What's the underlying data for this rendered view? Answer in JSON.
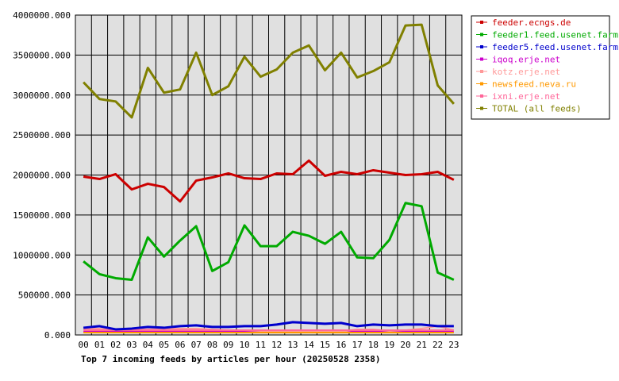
{
  "chart_data": {
    "type": "line",
    "title": "Top 7 incoming feeds by articles per hour (20250528 2358)",
    "xlabel": "",
    "ylabel": "",
    "ylim": [
      0,
      4000000
    ],
    "y_ticks": [
      "0.000",
      "500000.000",
      "1000000.000",
      "1500000.000",
      "2000000.000",
      "2500000.000",
      "3000000.000",
      "3500000.000",
      "4000000.000"
    ],
    "y_tick_values": [
      0,
      500000,
      1000000,
      1500000,
      2000000,
      2500000,
      3000000,
      3500000,
      4000000
    ],
    "categories": [
      "00",
      "01",
      "02",
      "03",
      "04",
      "05",
      "06",
      "07",
      "08",
      "09",
      "10",
      "11",
      "12",
      "13",
      "14",
      "15",
      "16",
      "17",
      "18",
      "19",
      "20",
      "21",
      "22",
      "23"
    ],
    "grid": true,
    "legend_position": "right",
    "plot_background": "#e0e0e0",
    "series": [
      {
        "name": "feeder.ecngs.de",
        "color": "#cc0000",
        "values": [
          1980000,
          1950000,
          2010000,
          1820000,
          1890000,
          1850000,
          1670000,
          1930000,
          1970000,
          2020000,
          1960000,
          1950000,
          2020000,
          2010000,
          2180000,
          1990000,
          2040000,
          2010000,
          2060000,
          2030000,
          2000000,
          2010000,
          2040000,
          1940000
        ]
      },
      {
        "name": "feeder1.feed.usenet.farm",
        "color": "#00aa00",
        "values": [
          920000,
          760000,
          710000,
          690000,
          1220000,
          980000,
          1180000,
          1360000,
          800000,
          910000,
          1370000,
          1110000,
          1110000,
          1290000,
          1240000,
          1140000,
          1290000,
          970000,
          960000,
          1190000,
          1650000,
          1610000,
          780000,
          690000
        ]
      },
      {
        "name": "feeder5.feed.usenet.farm",
        "color": "#0000cc",
        "values": [
          90000,
          110000,
          70000,
          80000,
          100000,
          90000,
          110000,
          120000,
          100000,
          100000,
          110000,
          110000,
          130000,
          160000,
          150000,
          140000,
          150000,
          110000,
          130000,
          120000,
          130000,
          130000,
          110000,
          110000
        ]
      },
      {
        "name": "iqoq.erje.net",
        "color": "#cc00cc",
        "values": [
          40000,
          40000,
          40000,
          40000,
          40000,
          40000,
          40000,
          40000,
          40000,
          40000,
          40000,
          40000,
          40000,
          40000,
          40000,
          40000,
          40000,
          40000,
          40000,
          40000,
          40000,
          40000,
          40000,
          40000
        ]
      },
      {
        "name": "kotz.erje.net",
        "color": "#ff9999",
        "values": [
          80000,
          80000,
          60000,
          70000,
          70000,
          80000,
          80000,
          80000,
          70000,
          60000,
          60000,
          50000,
          40000,
          40000,
          40000,
          40000,
          40000,
          70000,
          70000,
          50000,
          60000,
          80000,
          110000,
          60000
        ]
      },
      {
        "name": "newsfeed.neva.ru",
        "color": "#ff9900",
        "values": [
          30000,
          30000,
          30000,
          30000,
          30000,
          30000,
          30000,
          30000,
          30000,
          30000,
          30000,
          30000,
          30000,
          30000,
          30000,
          30000,
          30000,
          30000,
          30000,
          30000,
          30000,
          30000,
          30000,
          30000
        ]
      },
      {
        "name": "ixni.erje.net",
        "color": "#ff6699",
        "values": [
          60000,
          60000,
          60000,
          60000,
          60000,
          60000,
          60000,
          60000,
          60000,
          60000,
          60000,
          60000,
          60000,
          60000,
          60000,
          60000,
          60000,
          60000,
          60000,
          60000,
          60000,
          60000,
          60000,
          60000
        ]
      },
      {
        "name": "TOTAL (all feeds)",
        "color": "#808000",
        "values": [
          3160000,
          2950000,
          2920000,
          2720000,
          3340000,
          3030000,
          3070000,
          3530000,
          3000000,
          3110000,
          3480000,
          3230000,
          3320000,
          3530000,
          3620000,
          3310000,
          3530000,
          3220000,
          3300000,
          3410000,
          3870000,
          3880000,
          3120000,
          2890000
        ]
      }
    ]
  }
}
